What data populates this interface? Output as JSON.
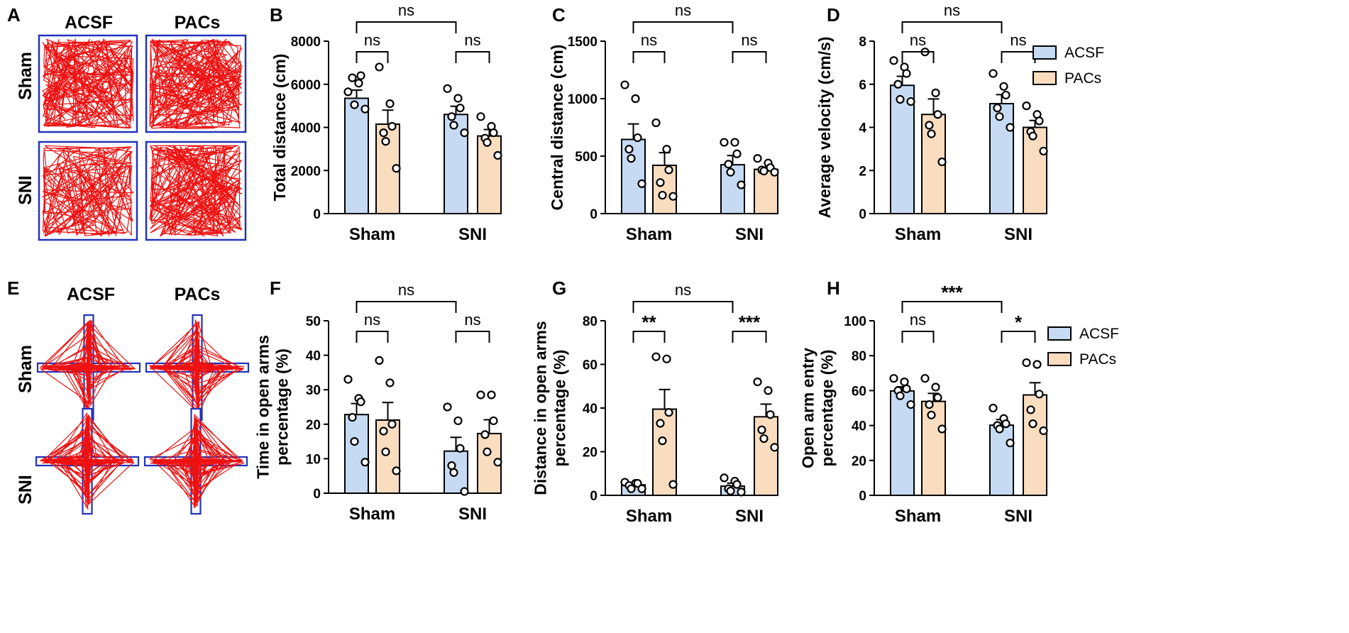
{
  "colors": {
    "acsf": "#c6dbf3",
    "pacs": "#fadcbf",
    "track": "#ee1111",
    "arena": "#2233bb"
  },
  "track_panels": [
    {
      "letter": "A",
      "type": "open-field",
      "cols": [
        "ACSF",
        "PACs"
      ],
      "rows": [
        "Sham",
        "SNI"
      ]
    },
    {
      "letter": "E",
      "type": "elevated-plus-maze",
      "cols": [
        "ACSF",
        "PACs"
      ],
      "rows": [
        "Sham",
        "SNI"
      ]
    }
  ],
  "legend": [
    "ACSF",
    "PACs"
  ],
  "chart_data": [
    {
      "panel": "B",
      "type": "bar",
      "categories": [
        "Sham",
        "SNI"
      ],
      "ylabel": [
        "Total distance (cm)"
      ],
      "ylim": [
        0,
        8000
      ],
      "yticks": [
        "0",
        "2000",
        "4000",
        "6000",
        "8000"
      ],
      "legend": false,
      "series": [
        {
          "name": "ACSF",
          "values": [
            5350,
            4600
          ],
          "sem": [
            380,
            380
          ],
          "points": [
            [
              5650,
              6050,
              6400,
              6300,
              5050,
              4850
            ],
            [
              5800,
              5350,
              4900,
              4500,
              4100,
              3750
            ]
          ]
        },
        {
          "name": "PACs",
          "values": [
            4150,
            3600
          ],
          "sem": [
            650,
            300
          ],
          "points": [
            [
              6800,
              5100,
              4050,
              3750,
              3350,
              2100
            ],
            [
              4500,
              4050,
              3750,
              3500,
              3300,
              2700
            ]
          ]
        }
      ],
      "comparisons": [
        {
          "label": "ns",
          "from": [
            0,
            0
          ],
          "to": [
            0,
            1
          ],
          "level": 0
        },
        {
          "label": "ns",
          "from": [
            1,
            0
          ],
          "to": [
            1,
            1
          ],
          "level": 0
        },
        {
          "label": "ns",
          "from": [
            0,
            0
          ],
          "to": [
            1,
            0
          ],
          "level": 1
        }
      ]
    },
    {
      "panel": "C",
      "type": "bar",
      "categories": [
        "Sham",
        "SNI"
      ],
      "ylabel": [
        "Central distance (cm)"
      ],
      "ylim": [
        0,
        1500
      ],
      "yticks": [
        "0",
        "500",
        "1000",
        "1500"
      ],
      "legend": false,
      "series": [
        {
          "name": "ACSF",
          "values": [
            645,
            425
          ],
          "sem": [
            135,
            80
          ],
          "points": [
            [
              1120,
              1000,
              660,
              560,
              480,
              260
            ],
            [
              620,
              620,
              520,
              430,
              360,
              250
            ]
          ]
        },
        {
          "name": "PACs",
          "values": [
            420,
            385
          ],
          "sem": [
            110,
            20
          ],
          "points": [
            [
              790,
              560,
              380,
              270,
              160,
              150
            ],
            [
              480,
              440,
              400,
              380,
              370,
              360
            ]
          ]
        }
      ],
      "comparisons": [
        {
          "label": "ns",
          "from": [
            0,
            0
          ],
          "to": [
            0,
            1
          ],
          "level": 0
        },
        {
          "label": "ns",
          "from": [
            1,
            0
          ],
          "to": [
            1,
            1
          ],
          "level": 0
        },
        {
          "label": "ns",
          "from": [
            0,
            0
          ],
          "to": [
            1,
            0
          ],
          "level": 1
        }
      ]
    },
    {
      "panel": "D",
      "type": "bar",
      "categories": [
        "Sham",
        "SNI"
      ],
      "ylabel": [
        "Average velocity (cm/s)"
      ],
      "ylim": [
        0,
        8
      ],
      "yticks": [
        "0",
        "2",
        "4",
        "6",
        "8"
      ],
      "legend": true,
      "series": [
        {
          "name": "ACSF",
          "values": [
            5.95,
            5.1
          ],
          "sem": [
            0.42,
            0.42
          ],
          "points": [
            [
              7.1,
              6.8,
              6.5,
              6.0,
              5.3,
              5.2
            ],
            [
              6.5,
              5.9,
              5.5,
              4.9,
              4.5,
              4.0
            ]
          ]
        },
        {
          "name": "PACs",
          "values": [
            4.6,
            4.0
          ],
          "sem": [
            0.72,
            0.32
          ],
          "points": [
            [
              7.5,
              5.6,
              4.6,
              4.1,
              3.7,
              2.4
            ],
            [
              5.0,
              4.6,
              4.3,
              3.8,
              3.6,
              2.9
            ]
          ]
        }
      ],
      "comparisons": [
        {
          "label": "ns",
          "from": [
            0,
            0
          ],
          "to": [
            0,
            1
          ],
          "level": 0
        },
        {
          "label": "ns",
          "from": [
            1,
            0
          ],
          "to": [
            1,
            1
          ],
          "level": 0
        },
        {
          "label": "ns",
          "from": [
            0,
            0
          ],
          "to": [
            1,
            0
          ],
          "level": 1
        }
      ]
    },
    {
      "panel": "F",
      "type": "bar",
      "categories": [
        "Sham",
        "SNI"
      ],
      "ylabel": [
        "Time in open arms",
        "percentage (%)"
      ],
      "ylim": [
        0,
        50
      ],
      "yticks": [
        "0",
        "10",
        "20",
        "30",
        "40",
        "50"
      ],
      "legend": false,
      "series": [
        {
          "name": "ACSF",
          "values": [
            22.8,
            12.2
          ],
          "sem": [
            3.2,
            4.0
          ],
          "points": [
            [
              33,
              27.5,
              26.5,
              22,
              15,
              9
            ],
            [
              25,
              21,
              13,
              8,
              6,
              0.5
            ]
          ]
        },
        {
          "name": "PACs",
          "values": [
            21.2,
            17.3
          ],
          "sem": [
            5.1,
            4.0
          ],
          "points": [
            [
              38.5,
              32,
              20,
              18,
              12,
              6.5
            ],
            [
              28.5,
              28.5,
              21,
              17,
              12,
              9
            ]
          ]
        }
      ],
      "comparisons": [
        {
          "label": "ns",
          "from": [
            0,
            0
          ],
          "to": [
            0,
            1
          ],
          "level": 0
        },
        {
          "label": "ns",
          "from": [
            1,
            0
          ],
          "to": [
            1,
            1
          ],
          "level": 0
        },
        {
          "label": "ns",
          "from": [
            0,
            0
          ],
          "to": [
            1,
            0
          ],
          "level": 1
        }
      ]
    },
    {
      "panel": "G",
      "type": "bar",
      "categories": [
        "Sham",
        "SNI"
      ],
      "ylabel": [
        "Distance in open arms",
        "percentage (%)"
      ],
      "ylim": [
        0,
        80
      ],
      "yticks": [
        "0",
        "20",
        "40",
        "60",
        "80"
      ],
      "legend": false,
      "series": [
        {
          "name": "ACSF",
          "values": [
            4.8,
            4.2
          ],
          "sem": [
            1.0,
            1.4
          ],
          "points": [
            [
              6,
              5.5,
              5.5,
              4.5,
              3,
              3
            ],
            [
              8,
              6.5,
              5,
              3,
              2,
              1.5
            ]
          ]
        },
        {
          "name": "PACs",
          "values": [
            39.5,
            36.0
          ],
          "sem": [
            9.0,
            5.8
          ],
          "points": [
            [
              63.5,
              62.5,
              38,
              33,
              25,
              5
            ],
            [
              52,
              48,
              37,
              30,
              26,
              22
            ]
          ]
        }
      ],
      "comparisons": [
        {
          "label": "**",
          "from": [
            0,
            0
          ],
          "to": [
            0,
            1
          ],
          "level": 0
        },
        {
          "label": "***",
          "from": [
            1,
            0
          ],
          "to": [
            1,
            1
          ],
          "level": 0
        },
        {
          "label": "ns",
          "from": [
            0,
            0
          ],
          "to": [
            1,
            0
          ],
          "level": 1
        }
      ]
    },
    {
      "panel": "H",
      "type": "bar",
      "categories": [
        "Sham",
        "SNI"
      ],
      "ylabel": [
        "Open arm entry",
        "percentage (%)"
      ],
      "ylim": [
        0,
        100
      ],
      "yticks": [
        "0",
        "20",
        "40",
        "60",
        "80",
        "100"
      ],
      "legend": true,
      "series": [
        {
          "name": "ACSF",
          "values": [
            59.8,
            40.2
          ],
          "sem": [
            2.4,
            3.2
          ],
          "points": [
            [
              67,
              65,
              61,
              60,
              57,
              52
            ],
            [
              50,
              44,
              41,
              40,
              38,
              30
            ]
          ]
        },
        {
          "name": "PACs",
          "values": [
            53.8,
            57.5
          ],
          "sem": [
            4.6,
            7.0
          ],
          "points": [
            [
              67,
              62,
              56,
              52,
              46,
              38
            ],
            [
              76,
              75,
              58,
              49,
              41,
              37
            ]
          ]
        }
      ],
      "comparisons": [
        {
          "label": "ns",
          "from": [
            0,
            0
          ],
          "to": [
            0,
            1
          ],
          "level": 0
        },
        {
          "label": "*",
          "from": [
            1,
            0
          ],
          "to": [
            1,
            1
          ],
          "level": 0
        },
        {
          "label": "***",
          "from": [
            0,
            0
          ],
          "to": [
            1,
            0
          ],
          "level": 1
        }
      ]
    }
  ]
}
